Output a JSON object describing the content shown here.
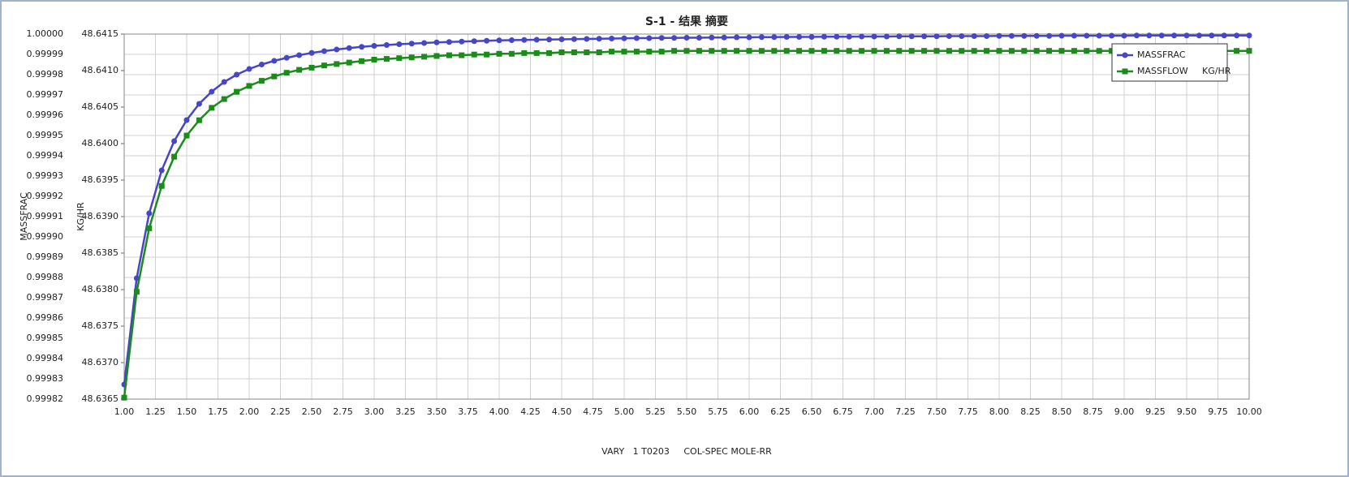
{
  "chart_data": {
    "type": "line",
    "title": "S-1 - 结果 摘要",
    "xlabel": "VARY   1 T0203     COL-SPEC MOLE-RR",
    "ylabel": "MASSFRAC",
    "y2label": "KG/HR",
    "x": [
      1.0,
      1.1,
      1.2,
      1.3,
      1.4,
      1.5,
      1.6,
      1.7,
      1.8,
      1.9,
      2.0,
      2.1,
      2.2,
      2.3,
      2.4,
      2.5,
      2.6,
      2.7,
      2.8,
      2.9,
      3.0,
      3.1,
      3.2,
      3.3,
      3.4,
      3.5,
      3.6,
      3.7,
      3.8,
      3.9,
      4.0,
      4.1,
      4.2,
      4.3,
      4.4,
      4.5,
      4.6,
      4.7,
      4.8,
      4.9,
      5.0,
      5.1,
      5.2,
      5.3,
      5.4,
      5.5,
      5.6,
      5.7,
      5.8,
      5.9,
      6.0,
      6.1,
      6.2,
      6.3,
      6.4,
      6.5,
      6.6,
      6.7,
      6.8,
      6.9,
      7.0,
      7.1,
      7.2,
      7.3,
      7.4,
      7.5,
      7.6,
      7.7,
      7.8,
      7.9,
      8.0,
      8.1,
      8.2,
      8.3,
      8.4,
      8.5,
      8.6,
      8.7,
      8.8,
      8.9,
      9.0,
      9.1,
      9.2,
      9.3,
      9.4,
      9.5,
      9.6,
      9.7,
      9.8,
      9.9,
      10.0
    ],
    "series": [
      {
        "name": "MASSFRAC",
        "color": "#4646c6",
        "marker": "circle",
        "values": [
          0.9998272,
          0.9998796,
          0.9999116,
          0.9999328,
          0.9999472,
          0.9999576,
          0.9999656,
          0.9999716,
          0.9999764,
          0.99998,
          0.9999828,
          0.999985,
          0.9999868,
          0.9999883,
          0.9999896,
          0.9999907,
          0.9999916,
          0.9999924,
          0.9999931,
          0.9999937,
          0.9999942,
          0.9999946,
          0.999995,
          0.9999953,
          0.9999956,
          0.9999959,
          0.9999961,
          0.9999963,
          0.9999965,
          0.9999967,
          0.9999969,
          0.999997,
          0.9999971,
          0.9999972,
          0.9999973,
          0.9999974,
          0.9999975,
          0.9999976,
          0.9999977,
          0.9999978,
          0.9999979,
          0.999998,
          0.999998,
          0.9999981,
          0.9999981,
          0.9999982,
          0.9999982,
          0.9999983,
          0.9999983,
          0.9999984,
          0.9999984,
          0.9999985,
          0.9999985,
          0.9999986,
          0.9999986,
          0.9999986,
          0.9999987,
          0.9999987,
          0.9999987,
          0.9999988,
          0.9999988,
          0.9999988,
          0.9999989,
          0.9999989,
          0.9999989,
          0.9999989,
          0.999999,
          0.999999,
          0.999999,
          0.999999,
          0.9999991,
          0.9999991,
          0.9999991,
          0.9999991,
          0.9999991,
          0.9999992,
          0.9999992,
          0.9999992,
          0.9999992,
          0.9999992,
          0.9999992,
          0.9999993,
          0.9999993,
          0.9999993,
          0.9999993,
          0.9999993,
          0.9999993,
          0.9999993,
          0.9999993,
          0.9999993,
          0.9999993
        ]
      },
      {
        "name": "MASSFLOW     KG/HR",
        "color": "#1b8c1b",
        "marker": "square",
        "axis": "y2",
        "values": [
          48.63652,
          48.63797,
          48.63884,
          48.63942,
          48.63982,
          48.64011,
          48.64032,
          48.64049,
          48.64061,
          48.64071,
          48.64079,
          48.64086,
          48.64092,
          48.64097,
          48.64101,
          48.64104,
          48.64107,
          48.64109,
          48.64111,
          48.64113,
          48.64115,
          48.64116,
          48.64117,
          48.64118,
          48.64119,
          48.6412,
          48.64121,
          48.64121,
          48.64122,
          48.64122,
          48.64123,
          48.64123,
          48.64124,
          48.64124,
          48.64124,
          48.64125,
          48.64125,
          48.64125,
          48.64125,
          48.64126,
          48.64126,
          48.64126,
          48.64126,
          48.64126,
          48.64127,
          48.64127,
          48.64127,
          48.64127,
          48.64127,
          48.64127,
          48.64127,
          48.64127,
          48.64127,
          48.64127,
          48.64127,
          48.64127,
          48.64127,
          48.64127,
          48.64127,
          48.64127,
          48.64127,
          48.64127,
          48.64127,
          48.64127,
          48.64127,
          48.64127,
          48.64127,
          48.64127,
          48.64127,
          48.64127,
          48.64127,
          48.64127,
          48.64127,
          48.64127,
          48.64127,
          48.64127,
          48.64127,
          48.64127,
          48.64127,
          48.64127,
          48.64127,
          48.64127,
          48.64127,
          48.64127,
          48.64127,
          48.64127,
          48.64127,
          48.64127,
          48.64127,
          48.64127,
          48.64127
        ]
      }
    ],
    "xlim": [
      1,
      10
    ],
    "xticks": [
      {
        "value": 1,
        "label": "1.00"
      },
      1.25,
      {
        "value": 1.5,
        "label": "1.50"
      },
      1.75,
      {
        "value": 2,
        "label": "2.00"
      },
      2.25,
      {
        "value": 2.5,
        "label": "2.50"
      },
      2.75,
      {
        "value": 3,
        "label": "3.00"
      },
      3.25,
      {
        "value": 3.5,
        "label": "3.50"
      },
      3.75,
      {
        "value": 4,
        "label": "4.00"
      },
      4.25,
      {
        "value": 4.5,
        "label": "4.50"
      },
      4.75,
      {
        "value": 5,
        "label": "5.00"
      },
      5.25,
      {
        "value": 5.5,
        "label": "5.50"
      },
      5.75,
      {
        "value": 6,
        "label": "6.00"
      },
      6.25,
      {
        "value": 6.5,
        "label": "6.50"
      },
      6.75,
      {
        "value": 7,
        "label": "7.00"
      },
      7.25,
      {
        "value": 7.5,
        "label": "7.50"
      },
      7.75,
      {
        "value": 8,
        "label": "8.00"
      },
      8.25,
      {
        "value": 8.5,
        "label": "8.50"
      },
      8.75,
      {
        "value": 9,
        "label": "9.00"
      },
      9.25,
      {
        "value": 9.5,
        "label": "9.50"
      },
      9.75,
      {
        "value": 10,
        "label": "10.00"
      }
    ],
    "ylim": [
      0.99982,
      1.0
    ],
    "yticks": [
      0.99982,
      0.99983,
      0.99984,
      0.99985,
      0.99986,
      0.99987,
      0.99988,
      0.99989,
      {
        "value": 0.9999,
        "label": "0.99990"
      },
      0.99991,
      0.99992,
      0.99993,
      0.99994,
      0.99995,
      0.99996,
      0.99997,
      0.99998,
      0.99999,
      {
        "value": 1,
        "label": "1.00000"
      }
    ],
    "y2lim": [
      48.6365,
      48.6415
    ],
    "y2ticks": [
      48.6365,
      {
        "value": 48.637,
        "label": "48.6370"
      },
      48.6375,
      {
        "value": 48.638,
        "label": "48.6380"
      },
      48.6385,
      {
        "value": 48.639,
        "label": "48.6390"
      },
      48.6395,
      {
        "value": 48.64,
        "label": "48.6400"
      },
      48.6405,
      {
        "value": 48.641,
        "label": "48.6410"
      },
      48.6415
    ],
    "grid": true,
    "legend": "upper right"
  }
}
